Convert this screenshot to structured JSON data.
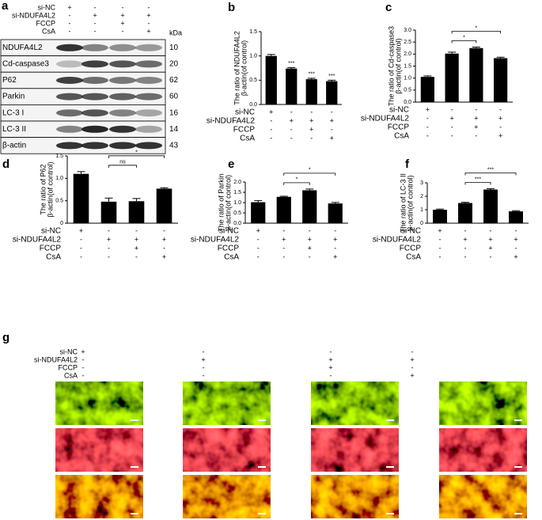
{
  "blot": {
    "panel": "a",
    "unit": "kDa",
    "treatments": [
      {
        "name": "si-NC",
        "signs": [
          "+",
          "-",
          "-",
          "-"
        ]
      },
      {
        "name": "si-NDUFA4L2",
        "signs": [
          "-",
          "+",
          "+",
          "+"
        ]
      },
      {
        "name": "FCCP",
        "signs": [
          "-",
          "-",
          "+",
          "-"
        ]
      },
      {
        "name": "CsA",
        "signs": [
          "-",
          "-",
          "-",
          "+"
        ]
      }
    ],
    "proteins": [
      {
        "name": "NDUFA4L2",
        "kda": 10
      },
      {
        "name": "Cd-caspase3",
        "kda": 20
      },
      {
        "name": "P62",
        "kda": 62
      },
      {
        "name": "Parkin",
        "kda": 60
      },
      {
        "name": "LC-3 I",
        "kda": 16
      },
      {
        "name": "LC-3 II",
        "kda": 14
      },
      {
        "name": "β-actin",
        "kda": 43
      }
    ]
  },
  "chart_data": [
    {
      "type": "bar",
      "panel": "b",
      "ylabel": [
        "The ratio of NDUFA4L2",
        "β-actin(of control)"
      ],
      "color": "#000000",
      "categories": [
        null,
        null,
        null,
        null
      ],
      "values": [
        1.0,
        0.74,
        0.52,
        0.48
      ],
      "errors": [
        0.03,
        0.02,
        0.02,
        0.02
      ],
      "significance": [
        null,
        "***",
        "***",
        "***"
      ],
      "comparisons": [],
      "ylim": [
        0,
        1.5
      ],
      "yticks": [
        {
          "value": 0,
          "label": "0.0"
        },
        0.5,
        {
          "value": 1,
          "label": "1.0"
        },
        1.5
      ],
      "treatments": [
        {
          "name": "si-NC",
          "signs": [
            "+",
            "-",
            "-",
            "-"
          ]
        },
        {
          "name": "si-NDUFA4L2",
          "signs": [
            "-",
            "+",
            "+",
            "+"
          ]
        },
        {
          "name": "FCCP",
          "signs": [
            "-",
            "-",
            "+",
            "-"
          ]
        },
        {
          "name": "CsA",
          "signs": [
            "-",
            "-",
            "-",
            "+"
          ]
        }
      ]
    },
    {
      "type": "bar",
      "panel": "c",
      "ylabel": [
        "The ratio of Cd-caspase3",
        "β-actin(of control)"
      ],
      "color": "#000000",
      "categories": [
        null,
        null,
        null,
        null
      ],
      "values": [
        1.05,
        2.02,
        2.25,
        1.83
      ],
      "errors": [
        0.04,
        0.06,
        0.04,
        0.04
      ],
      "significance": [
        null,
        null,
        null,
        null
      ],
      "comparisons": [
        {
          "bars": [
            1,
            2
          ],
          "label": "*"
        },
        {
          "bars": [
            1,
            3
          ],
          "label": "*"
        }
      ],
      "ylim": [
        0,
        3
      ],
      "yticks": [
        {
          "value": 0,
          "label": "0.0"
        },
        0.5,
        {
          "value": 1,
          "label": "1.0"
        },
        1.5,
        {
          "value": 2,
          "label": "2.0"
        },
        2.5,
        {
          "value": 3,
          "label": "3.0"
        }
      ],
      "treatments": [
        {
          "name": "si-NC",
          "signs": [
            "+",
            "-",
            "-",
            "-"
          ]
        },
        {
          "name": "si-NDUFA4L2",
          "signs": [
            "-",
            "+",
            "+",
            "+"
          ]
        },
        {
          "name": "FCCP",
          "signs": [
            "-",
            "-",
            "+",
            "-"
          ]
        },
        {
          "name": "CsA",
          "signs": [
            "-",
            "-",
            "-",
            "+"
          ]
        }
      ]
    },
    {
      "type": "bar",
      "panel": "d",
      "ylabel": [
        "The ratio of P62",
        "β-actin(of control)"
      ],
      "color": "#000000",
      "categories": [
        null,
        null,
        null,
        null
      ],
      "values": [
        1.1,
        0.48,
        0.49,
        0.77
      ],
      "errors": [
        0.05,
        0.08,
        0.06,
        0.02
      ],
      "significance": [
        null,
        null,
        null,
        null
      ],
      "comparisons": [
        {
          "bars": [
            1,
            2
          ],
          "label": "ns"
        },
        {
          "bars": [
            1,
            3
          ],
          "label": "*"
        }
      ],
      "ylim": [
        0,
        1.5
      ],
      "yticks": [
        0,
        0.5,
        {
          "value": 1,
          "label": "1.0"
        },
        1.5
      ],
      "treatments": [
        {
          "name": "si-NC",
          "signs": [
            "+",
            "-",
            "-",
            "-"
          ]
        },
        {
          "name": "si-NDUFA4L2",
          "signs": [
            "-",
            "+",
            "+",
            "+"
          ]
        },
        {
          "name": "FCCP",
          "signs": [
            "-",
            "-",
            "+",
            "-"
          ]
        },
        {
          "name": "CsA",
          "signs": [
            "-",
            "-",
            "-",
            "+"
          ]
        }
      ]
    },
    {
      "type": "bar",
      "panel": "e",
      "ylabel": [
        "The ratio of Parkin",
        "β-actin(of control)"
      ],
      "color": "#000000",
      "categories": [
        null,
        null,
        null,
        null
      ],
      "values": [
        1.02,
        1.28,
        1.6,
        0.96
      ],
      "errors": [
        0.08,
        0.03,
        0.06,
        0.05
      ],
      "significance": [
        null,
        null,
        null,
        null
      ],
      "comparisons": [
        {
          "bars": [
            1,
            2
          ],
          "label": "*"
        },
        {
          "bars": [
            1,
            3
          ],
          "label": "*"
        }
      ],
      "ylim": [
        0,
        2
      ],
      "yticks": [
        {
          "value": 0,
          "label": "0.0"
        },
        0.5,
        {
          "value": 1,
          "label": "1.0"
        },
        1.5,
        {
          "value": 2,
          "label": "2.0"
        }
      ],
      "treatments": [
        {
          "name": "si-NC",
          "signs": [
            "+",
            "-",
            "-",
            "-"
          ]
        },
        {
          "name": "si-NDUFA4L2",
          "signs": [
            "-",
            "+",
            "+",
            "+"
          ]
        },
        {
          "name": "FCCP",
          "signs": [
            "-",
            "-",
            "+",
            "-"
          ]
        },
        {
          "name": "CsA",
          "signs": [
            "-",
            "-",
            "-",
            "+"
          ]
        }
      ]
    },
    {
      "type": "bar",
      "panel": "f",
      "ylabel": [
        "The ratio of LC-3 II",
        "β-actin(of control)"
      ],
      "color": "#000000",
      "categories": [
        null,
        null,
        null,
        null
      ],
      "values": [
        1.0,
        1.5,
        2.5,
        0.88
      ],
      "errors": [
        0.05,
        0.05,
        0.06,
        0.05
      ],
      "significance": [
        null,
        null,
        null,
        null
      ],
      "comparisons": [
        {
          "bars": [
            1,
            2
          ],
          "label": "***"
        },
        {
          "bars": [
            1,
            3
          ],
          "label": "***"
        }
      ],
      "ylim": [
        0,
        3
      ],
      "yticks": [
        0,
        1,
        2,
        3
      ],
      "treatments": [
        {
          "name": "si-NC",
          "signs": [
            "+",
            "-",
            "-",
            "-"
          ]
        },
        {
          "name": "si-NDUFA4L2",
          "signs": [
            "-",
            "+",
            "+",
            "+"
          ]
        },
        {
          "name": "FCCP",
          "signs": [
            "-",
            "-",
            "+",
            "-"
          ]
        },
        {
          "name": "CsA",
          "signs": [
            "-",
            "-",
            "-",
            "+"
          ]
        }
      ]
    }
  ],
  "micrographs": {
    "panel": "g",
    "treatments": [
      {
        "name": "si-NC",
        "signs": [
          "+",
          "-",
          "-",
          "-"
        ]
      },
      {
        "name": "si-NDUFA4L2",
        "signs": [
          "-",
          "+",
          "+",
          "+"
        ]
      },
      {
        "name": "FCCP",
        "signs": [
          "-",
          "-",
          "+",
          "-"
        ]
      },
      {
        "name": "CsA",
        "signs": [
          "-",
          "-",
          "-",
          "+"
        ]
      }
    ]
  }
}
